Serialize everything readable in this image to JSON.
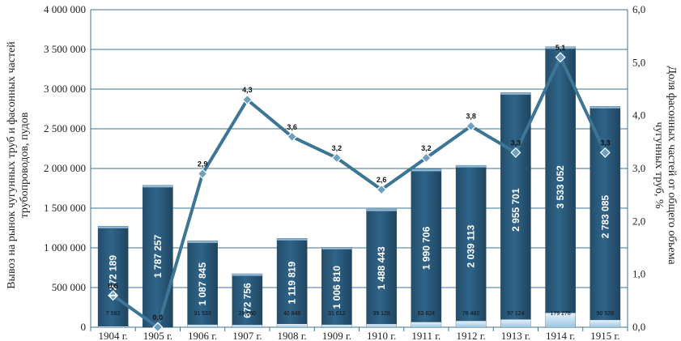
{
  "chart_data": {
    "type": "bar",
    "categories": [
      "1904 г.",
      "1905 г.",
      "1906 г.",
      "1907 г.",
      "1908 г.",
      "1909 г.",
      "1910 г.",
      "1911 г.",
      "1912 г.",
      "1913 г.",
      "1914 г.",
      "1915 г."
    ],
    "series": [
      {
        "type": "bar",
        "axis": "left",
        "values": [
          1272189,
          1787257,
          1087845,
          672756,
          1119819,
          1006810,
          1488443,
          1990706,
          2039113,
          2955701,
          3533052,
          2783085
        ],
        "labels": [
          "1 272 189",
          "1 787 257",
          "1 087 845",
          "672 756",
          "1 119 819",
          "1 006 810",
          "1 488 443",
          "1 990 706",
          "2 039 113",
          "2 955 701",
          "3 533 052",
          "2 783 085"
        ],
        "color": "#2f5f80"
      },
      {
        "type": "bar",
        "axis": "left",
        "values": [
          7592,
          0,
          31533,
          28660,
          40848,
          31612,
          39128,
          63824,
          78482,
          97124,
          179278,
          90528
        ],
        "labels": [
          "7 592",
          "",
          "31 533",
          "28 660",
          "40 848",
          "31 612",
          "39 128",
          "63 824",
          "78 482",
          "97 124",
          "179 278",
          "90 528"
        ],
        "color": "#b9d8ec"
      },
      {
        "type": "line",
        "axis": "right",
        "values": [
          0.6,
          0.0,
          2.9,
          4.3,
          3.6,
          3.2,
          2.6,
          3.2,
          3.8,
          3.3,
          5.1,
          3.3
        ],
        "labels": [
          "0,6",
          "0,0",
          "2,9",
          "4,3",
          "3,6",
          "3,2",
          "2,6",
          "3,2",
          "3,8",
          "3,3",
          "5,1",
          "3,3"
        ],
        "color": "#3d7594"
      }
    ],
    "y_left": {
      "label": "Вывоз на рынок чугунных труб и фасонных частей трубопроводов, пудов",
      "lim": [
        0,
        4000000
      ],
      "ticks": [
        0,
        500000,
        1000000,
        1500000,
        2000000,
        2500000,
        3000000,
        3500000,
        4000000
      ],
      "tick_labels": [
        "0",
        "500 000",
        "1 000 000",
        "1 500 000",
        "2 000 000",
        "2 500 000",
        "3 000 000",
        "3 500 000",
        "4 000 000"
      ]
    },
    "y_right": {
      "label": "Доля фасонных частей от общего объема чугунных труб, %",
      "lim": [
        0,
        6
      ],
      "ticks": [
        0,
        1,
        2,
        3,
        4,
        5,
        6
      ],
      "tick_labels": [
        "0,0",
        "1,0",
        "2,0",
        "3,0",
        "4,0",
        "5,0",
        "6,0"
      ]
    },
    "grid": true
  }
}
